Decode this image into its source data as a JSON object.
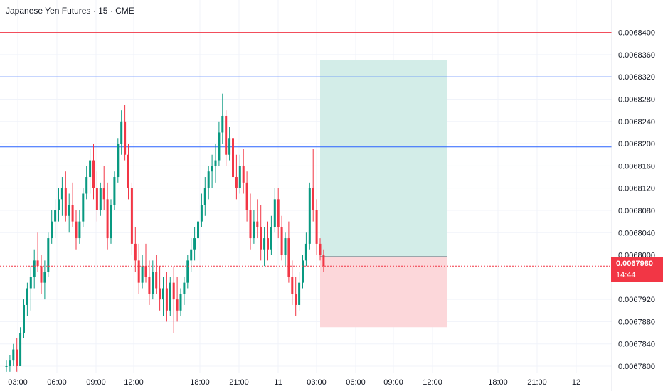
{
  "header": {
    "title": "Japanese Yen Futures · 15 · CME"
  },
  "colors": {
    "up": "#089981",
    "down": "#f23645",
    "hline_red": "#f23645",
    "hline_blue": "#2962ff",
    "profit_zone": "#d3ede8",
    "loss_zone": "#fcd7da",
    "grid": "#f0f3fa"
  },
  "price_tag": {
    "price": "0.0067980",
    "countdown": "14:44"
  },
  "chart_data": {
    "type": "candlestick",
    "title": "Japanese Yen Futures · 15 · CME",
    "ylim": [
      0.00678,
      0.006842
    ],
    "y_ticks": [
      "0.0068400",
      "0.0068360",
      "0.0068320",
      "0.0068280",
      "0.0068240",
      "0.0068200",
      "0.0068160",
      "0.0068120",
      "0.0068080",
      "0.0068040",
      "0.0068000",
      "0.0067920",
      "0.0067880",
      "0.0067840",
      "0.0067800"
    ],
    "x_ticks": [
      "03:00",
      "06:00",
      "09:00",
      "12:00",
      "18:00",
      "21:00",
      "11",
      "03:00",
      "06:00",
      "09:00",
      "12:00",
      "18:00",
      "21:00",
      "12"
    ],
    "horizontal_lines": [
      {
        "price": 0.00684,
        "color": "red"
      },
      {
        "price": 0.006832,
        "color": "blue"
      },
      {
        "price": 0.0068194,
        "color": "blue"
      }
    ],
    "current_price": 0.006798,
    "position": {
      "entry": 0.0067997,
      "target": 0.006835,
      "stop": 0.006787
    },
    "candles": [
      [
        0.00678,
        0.006781,
        0.006779,
        0.00678
      ],
      [
        0.00678,
        0.006782,
        0.006779,
        0.006781
      ],
      [
        0.006781,
        0.006784,
        0.00678,
        0.006783
      ],
      [
        0.006783,
        0.006785,
        0.006779,
        0.00678
      ],
      [
        0.00678,
        0.006787,
        0.00678,
        0.006786
      ],
      [
        0.006786,
        0.006792,
        0.006785,
        0.006791
      ],
      [
        0.006791,
        0.006795,
        0.006789,
        0.006794
      ],
      [
        0.006794,
        0.006798,
        0.00679,
        0.006796
      ],
      [
        0.006796,
        0.006801,
        0.006794,
        0.006799
      ],
      [
        0.006799,
        0.006804,
        0.006797,
        0.006798
      ],
      [
        0.006798,
        0.0068,
        0.006793,
        0.006795
      ],
      [
        0.006795,
        0.006799,
        0.006792,
        0.006797
      ],
      [
        0.006797,
        0.006804,
        0.006796,
        0.006803
      ],
      [
        0.006803,
        0.006808,
        0.006802,
        0.006806
      ],
      [
        0.006806,
        0.00681,
        0.006803,
        0.006808
      ],
      [
        0.006808,
        0.006812,
        0.006806,
        0.00681
      ],
      [
        0.00681,
        0.006814,
        0.006807,
        0.006812
      ],
      [
        0.006812,
        0.006815,
        0.006806,
        0.006807
      ],
      [
        0.006807,
        0.006811,
        0.006804,
        0.006809
      ],
      [
        0.006809,
        0.006813,
        0.006805,
        0.006806
      ],
      [
        0.006806,
        0.006808,
        0.006801,
        0.006803
      ],
      [
        0.006803,
        0.006808,
        0.006802,
        0.006806
      ],
      [
        0.006806,
        0.006812,
        0.006805,
        0.006811
      ],
      [
        0.006811,
        0.006816,
        0.00681,
        0.006814
      ],
      [
        0.006814,
        0.006819,
        0.006811,
        0.006817
      ],
      [
        0.006817,
        0.00682,
        0.00681,
        0.006812
      ],
      [
        0.006812,
        0.006815,
        0.006806,
        0.006808
      ],
      [
        0.006808,
        0.006813,
        0.006807,
        0.006812
      ],
      [
        0.006812,
        0.006816,
        0.006808,
        0.00681
      ],
      [
        0.00681,
        0.006813,
        0.006801,
        0.006803
      ],
      [
        0.006803,
        0.00681,
        0.006802,
        0.006809
      ],
      [
        0.006809,
        0.006815,
        0.006808,
        0.006814
      ],
      [
        0.006814,
        0.006821,
        0.006813,
        0.00682
      ],
      [
        0.00682,
        0.006826,
        0.006818,
        0.006824
      ],
      [
        0.006824,
        0.006827,
        0.006817,
        0.006818
      ],
      [
        0.006818,
        0.00682,
        0.00681,
        0.006812
      ],
      [
        0.006812,
        0.006813,
        0.0068,
        0.006802
      ],
      [
        0.006802,
        0.006805,
        0.006797,
        0.006799
      ],
      [
        0.006799,
        0.006802,
        0.006793,
        0.006795
      ],
      [
        0.006795,
        0.0068,
        0.006794,
        0.006798
      ],
      [
        0.006798,
        0.006802,
        0.006795,
        0.006796
      ],
      [
        0.006796,
        0.006799,
        0.006791,
        0.006793
      ],
      [
        0.006793,
        0.006799,
        0.006792,
        0.006797
      ],
      [
        0.006797,
        0.0068,
        0.006793,
        0.006794
      ],
      [
        0.006794,
        0.006798,
        0.00679,
        0.006792
      ],
      [
        0.006792,
        0.006796,
        0.006789,
        0.006794
      ],
      [
        0.006794,
        0.006797,
        0.006788,
        0.00679
      ],
      [
        0.00679,
        0.006796,
        0.006789,
        0.006795
      ],
      [
        0.006795,
        0.006798,
        0.006786,
        0.006792
      ],
      [
        0.006792,
        0.006796,
        0.006788,
        0.00679
      ],
      [
        0.00679,
        0.006794,
        0.006789,
        0.006793
      ],
      [
        0.006793,
        0.006796,
        0.006791,
        0.006795
      ],
      [
        0.006795,
        0.0068,
        0.006794,
        0.006799
      ],
      [
        0.006799,
        0.006803,
        0.006797,
        0.006801
      ],
      [
        0.006801,
        0.006805,
        0.006799,
        0.006803
      ],
      [
        0.006803,
        0.006807,
        0.006802,
        0.006806
      ],
      [
        0.006806,
        0.006811,
        0.006805,
        0.006809
      ],
      [
        0.006809,
        0.006814,
        0.006807,
        0.006812
      ],
      [
        0.006812,
        0.006816,
        0.00681,
        0.006815
      ],
      [
        0.006815,
        0.006818,
        0.006812,
        0.006816
      ],
      [
        0.006816,
        0.00682,
        0.006813,
        0.006817
      ],
      [
        0.006817,
        0.006824,
        0.006816,
        0.006822
      ],
      [
        0.006822,
        0.006829,
        0.00682,
        0.006825
      ],
      [
        0.006825,
        0.006826,
        0.006816,
        0.006818
      ],
      [
        0.006818,
        0.006823,
        0.006817,
        0.006821
      ],
      [
        0.006821,
        0.006824,
        0.006813,
        0.006814
      ],
      [
        0.006814,
        0.006818,
        0.00681,
        0.006812
      ],
      [
        0.006812,
        0.006818,
        0.006811,
        0.006816
      ],
      [
        0.006816,
        0.006819,
        0.006811,
        0.006813
      ],
      [
        0.006813,
        0.006815,
        0.006806,
        0.006808
      ],
      [
        0.006808,
        0.006811,
        0.006801,
        0.006803
      ],
      [
        0.006803,
        0.006808,
        0.006802,
        0.006806
      ],
      [
        0.006806,
        0.00681,
        0.006803,
        0.006805
      ],
      [
        0.006805,
        0.006809,
        0.006799,
        0.006801
      ],
      [
        0.006801,
        0.006805,
        0.006798,
        0.006803
      ],
      [
        0.006803,
        0.006806,
        0.006799,
        0.006801
      ],
      [
        0.006801,
        0.006807,
        0.0068,
        0.006805
      ],
      [
        0.006805,
        0.006812,
        0.006804,
        0.00681
      ],
      [
        0.00681,
        0.006812,
        0.006803,
        0.006805
      ],
      [
        0.006805,
        0.006807,
        0.006799,
        0.0068
      ],
      [
        0.0068,
        0.006804,
        0.006798,
        0.006803
      ],
      [
        0.006803,
        0.006806,
        0.006795,
        0.006796
      ],
      [
        0.006796,
        0.006799,
        0.006791,
        0.006793
      ],
      [
        0.006793,
        0.006796,
        0.006789,
        0.006791
      ],
      [
        0.006791,
        0.006797,
        0.00679,
        0.006795
      ],
      [
        0.006795,
        0.0068,
        0.006794,
        0.006799
      ],
      [
        0.006799,
        0.006804,
        0.006798,
        0.006802
      ],
      [
        0.006802,
        0.006813,
        0.006801,
        0.006812
      ],
      [
        0.006812,
        0.006819,
        0.006806,
        0.006808
      ],
      [
        0.006808,
        0.00681,
        0.0068,
        0.006802
      ],
      [
        0.006802,
        0.006803,
        0.006799,
        0.0068
      ],
      [
        0.0068,
        0.006801,
        0.006797,
        0.006798
      ]
    ]
  }
}
